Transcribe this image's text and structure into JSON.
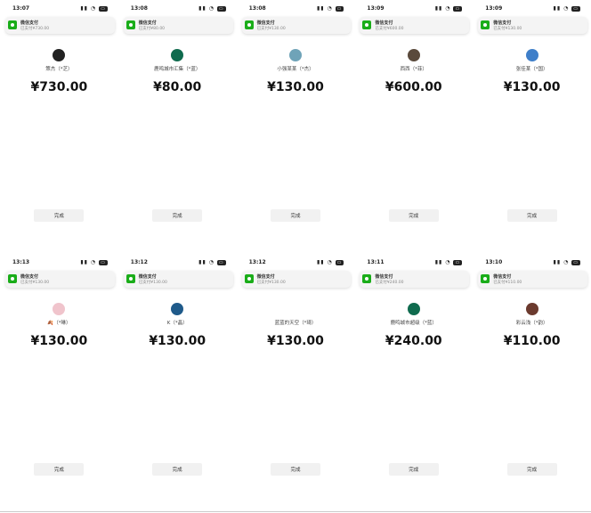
{
  "accent": "#1aad19",
  "done_label": "完成",
  "notification_title": "微信支付",
  "panels": [
    {
      "time": "13:07",
      "notif_sub": "已支付¥730.00",
      "name": "策杰（*芝）",
      "amount": "¥730.00",
      "avatar_color": "#222222"
    },
    {
      "time": "13:08",
      "notif_sub": "已支付¥80.00",
      "name": "鹿鸣城市汇集（*蓝）",
      "amount": "¥80.00",
      "avatar_color": "#0f6b4e"
    },
    {
      "time": "13:08",
      "notif_sub": "已支付¥130.00",
      "name": "小强某某（*杰）",
      "amount": "¥130.00",
      "avatar_color": "#6fa3b8"
    },
    {
      "time": "13:09",
      "notif_sub": "已支付¥600.00",
      "name": "西西（*菲）",
      "amount": "¥600.00",
      "avatar_color": "#5a4a3c"
    },
    {
      "time": "13:09",
      "notif_sub": "已支付¥130.00",
      "name": "张佳某（*国）",
      "amount": "¥130.00",
      "avatar_color": "#3f7fc9"
    },
    {
      "time": "13:13",
      "notif_sub": "已支付¥130.00",
      "name": "🍂（*琳）",
      "amount": "¥130.00",
      "avatar_color": "#f0c4cc"
    },
    {
      "time": "13:12",
      "notif_sub": "已支付¥130.00",
      "name": "K（*晶）",
      "amount": "¥130.00",
      "avatar_color": "#1f5a8a"
    },
    {
      "time": "13:12",
      "notif_sub": "已支付¥130.00",
      "name": "蓝蓝的天空（*琦）",
      "amount": "¥130.00",
      "avatar_color": "#ffffff"
    },
    {
      "time": "13:11",
      "notif_sub": "已支付¥240.00",
      "name": "鹿鸣城市超级（*蓝）",
      "amount": "¥240.00",
      "avatar_color": "#0f6b4e"
    },
    {
      "time": "13:10",
      "notif_sub": "已支付¥110.00",
      "name": "彩云浅（*韵）",
      "amount": "¥110.00",
      "avatar_color": "#6b3a2e"
    }
  ]
}
